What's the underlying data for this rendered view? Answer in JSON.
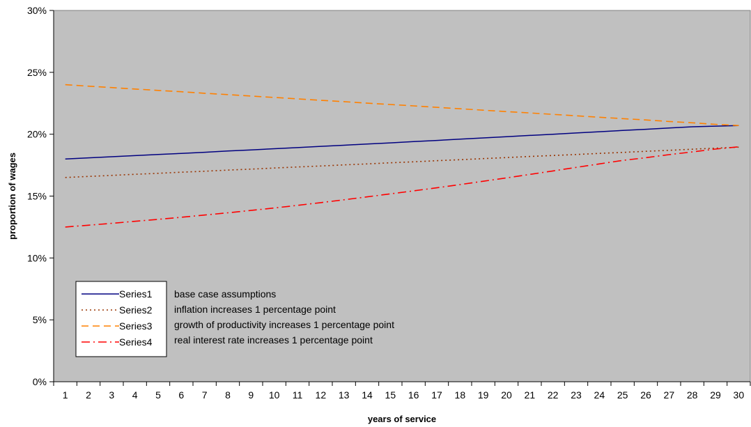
{
  "chart_data": {
    "type": "line",
    "xlabel": "years of service",
    "ylabel": "proportion of wages",
    "x": [
      1,
      2,
      3,
      4,
      5,
      6,
      7,
      8,
      9,
      10,
      11,
      12,
      13,
      14,
      15,
      16,
      17,
      18,
      19,
      20,
      21,
      22,
      23,
      24,
      25,
      26,
      27,
      28,
      29,
      30
    ],
    "ylim": [
      0,
      30
    ],
    "yticks": [
      "0%",
      "5%",
      "10%",
      "15%",
      "20%",
      "25%",
      "30%"
    ],
    "grid": false,
    "legend_position": "bottom-left",
    "series": [
      {
        "name": "Series1",
        "color": "#000080",
        "dash": "solid",
        "values": [
          18.0,
          18.09,
          18.18,
          18.27,
          18.36,
          18.45,
          18.54,
          18.64,
          18.73,
          18.83,
          18.92,
          19.02,
          19.11,
          19.21,
          19.3,
          19.4,
          19.5,
          19.6,
          19.7,
          19.8,
          19.9,
          20.0,
          20.1,
          20.2,
          20.3,
          20.4,
          20.5,
          20.6,
          20.65,
          20.7
        ]
      },
      {
        "name": "Series2",
        "color": "#993300",
        "dash": "dotted",
        "values": [
          16.5,
          16.59,
          16.67,
          16.76,
          16.84,
          16.93,
          17.01,
          17.1,
          17.18,
          17.27,
          17.35,
          17.43,
          17.52,
          17.6,
          17.69,
          17.77,
          17.86,
          17.94,
          18.03,
          18.11,
          18.2,
          18.28,
          18.36,
          18.45,
          18.53,
          18.62,
          18.7,
          18.79,
          18.87,
          18.95
        ]
      },
      {
        "name": "Series3",
        "color": "#FF8000",
        "dash": "dashed",
        "values": [
          24.0,
          23.88,
          23.77,
          23.65,
          23.54,
          23.43,
          23.31,
          23.2,
          23.08,
          22.97,
          22.86,
          22.74,
          22.63,
          22.51,
          22.4,
          22.29,
          22.17,
          22.06,
          21.94,
          21.83,
          21.72,
          21.6,
          21.49,
          21.37,
          21.26,
          21.15,
          21.03,
          20.92,
          20.8,
          20.7
        ]
      },
      {
        "name": "Series4",
        "color": "#FF0000",
        "dash": "dashdot",
        "values": [
          12.5,
          12.65,
          12.8,
          12.96,
          13.12,
          13.29,
          13.47,
          13.65,
          13.84,
          14.04,
          14.25,
          14.47,
          14.7,
          14.94,
          15.18,
          15.42,
          15.67,
          15.93,
          16.2,
          16.47,
          16.75,
          17.03,
          17.32,
          17.6,
          17.88,
          18.1,
          18.35,
          18.57,
          18.8,
          18.98
        ]
      }
    ],
    "annotations": [
      "base case assumptions",
      "inflation increases 1 percentage point",
      "growth of productivity increases 1 percentage point",
      "real interest rate increases 1 percentage point"
    ]
  },
  "colors": {
    "plot_background": "#C0C0C0",
    "axis": "#000000"
  }
}
